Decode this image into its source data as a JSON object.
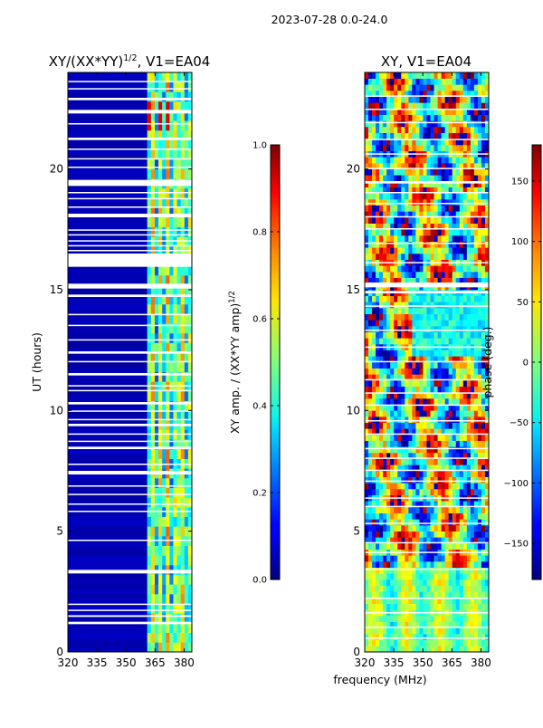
{
  "chart_data": {
    "suptitle": "2023-07-28 0.0-24.0",
    "common_xlabel": "frequency (MHz)",
    "panels": [
      {
        "type": "heatmap",
        "title_base": "XY/(XX*YY)",
        "title_exponent": "1/2",
        "title_suffix": ", V1=EA04",
        "ylabel": "UT (hours)",
        "xlim": [
          320,
          384
        ],
        "ylim": [
          0,
          24
        ],
        "xticks": [
          320,
          335,
          350,
          365,
          380
        ],
        "yticks": [
          0,
          5,
          10,
          15,
          20
        ],
        "colormap": "jet",
        "colorbar": {
          "label_base": "XY amp. / (XX*YY amp)",
          "label_exponent": "1/2",
          "range": [
            0.0,
            1.0
          ],
          "ticks": [
            "0.0",
            "0.2",
            "0.4",
            "0.6",
            "0.8",
            "1.0"
          ]
        },
        "description_values": {
          "low_band_MHz": [
            320,
            361
          ],
          "low_band_level": 0.05,
          "high_band_MHz": [
            361,
            384
          ],
          "high_band_level": 0.45,
          "flagged_hours": [
            [
              1.15,
              1.25
            ],
            [
              1.45,
              1.52
            ],
            [
              1.7,
              1.75
            ],
            [
              1.95,
              2.0
            ],
            [
              3.25,
              3.4
            ],
            [
              4.6,
              4.65
            ],
            [
              5.8,
              5.85
            ],
            [
              6.1,
              6.15
            ],
            [
              6.5,
              6.55
            ],
            [
              6.85,
              6.9
            ],
            [
              7.35,
              7.5
            ],
            [
              7.75,
              7.8
            ],
            [
              8.4,
              8.5
            ],
            [
              8.7,
              8.75
            ],
            [
              9.0,
              9.05
            ],
            [
              9.35,
              9.45
            ],
            [
              9.6,
              9.65
            ],
            [
              9.95,
              10.0
            ],
            [
              10.25,
              10.35
            ],
            [
              10.8,
              10.85
            ],
            [
              11.0,
              11.05
            ],
            [
              11.45,
              11.55
            ],
            [
              12.0,
              12.05
            ],
            [
              12.35,
              12.45
            ],
            [
              12.9,
              12.95
            ],
            [
              13.5,
              13.55
            ],
            [
              13.95,
              14.0
            ],
            [
              14.7,
              14.8
            ],
            [
              15.05,
              15.25
            ],
            [
              15.95,
              16.5
            ],
            [
              16.6,
              16.65
            ],
            [
              16.8,
              16.85
            ],
            [
              17.0,
              17.05
            ],
            [
              17.25,
              17.3
            ],
            [
              17.45,
              17.5
            ],
            [
              18.0,
              18.15
            ],
            [
              18.4,
              18.45
            ],
            [
              18.75,
              18.8
            ],
            [
              19.0,
              19.05
            ],
            [
              19.3,
              19.55
            ],
            [
              20.05,
              20.1
            ],
            [
              20.4,
              20.45
            ],
            [
              20.8,
              20.85
            ],
            [
              21.2,
              21.3
            ],
            [
              21.85,
              21.9
            ],
            [
              22.3,
              22.45
            ],
            [
              22.85,
              22.95
            ],
            [
              23.3,
              23.35
            ],
            [
              23.6,
              23.65
            ]
          ]
        }
      },
      {
        "type": "heatmap",
        "title": "XY, V1=EA04",
        "xlim": [
          320,
          384
        ],
        "ylim": [
          0,
          24
        ],
        "xticks": [
          320,
          335,
          350,
          365,
          380
        ],
        "yticks": [
          0,
          5,
          10,
          15,
          20
        ],
        "colormap": "jet",
        "colorbar": {
          "label": "phase (deg.)",
          "range": [
            -180,
            180
          ],
          "ticks": [
            "-150",
            "-100",
            "-50",
            "0",
            "50",
            "100",
            "150"
          ]
        },
        "description_values": {
          "phase_range_deg": [
            -180,
            180
          ],
          "flagged_hours": [
            [
              0.55,
              0.6
            ],
            [
              1.0,
              1.05
            ],
            [
              1.6,
              1.65
            ],
            [
              2.2,
              2.25
            ],
            [
              3.4,
              3.45
            ],
            [
              4.1,
              4.15
            ],
            [
              4.5,
              4.55
            ],
            [
              5.3,
              5.35
            ],
            [
              6.0,
              6.05
            ],
            [
              6.35,
              6.4
            ],
            [
              7.05,
              7.1
            ],
            [
              7.5,
              7.55
            ],
            [
              8.0,
              8.05
            ],
            [
              8.4,
              8.45
            ],
            [
              9.0,
              9.05
            ],
            [
              9.55,
              9.6
            ],
            [
              10.2,
              10.25
            ],
            [
              10.7,
              10.75
            ],
            [
              11.25,
              11.3
            ],
            [
              12.0,
              12.05
            ],
            [
              12.6,
              12.65
            ],
            [
              13.3,
              13.35
            ],
            [
              14.3,
              14.35
            ],
            [
              14.85,
              14.95
            ],
            [
              15.1,
              15.3
            ],
            [
              16.1,
              16.15
            ],
            [
              16.9,
              16.95
            ],
            [
              17.5,
              17.55
            ],
            [
              18.0,
              18.05
            ],
            [
              18.55,
              18.6
            ],
            [
              19.0,
              19.05
            ],
            [
              19.4,
              19.5
            ],
            [
              20.0,
              20.05
            ],
            [
              20.6,
              20.65
            ],
            [
              21.2,
              21.25
            ],
            [
              21.9,
              21.95
            ],
            [
              22.45,
              22.5
            ],
            [
              23.0,
              23.05
            ]
          ]
        }
      }
    ]
  }
}
